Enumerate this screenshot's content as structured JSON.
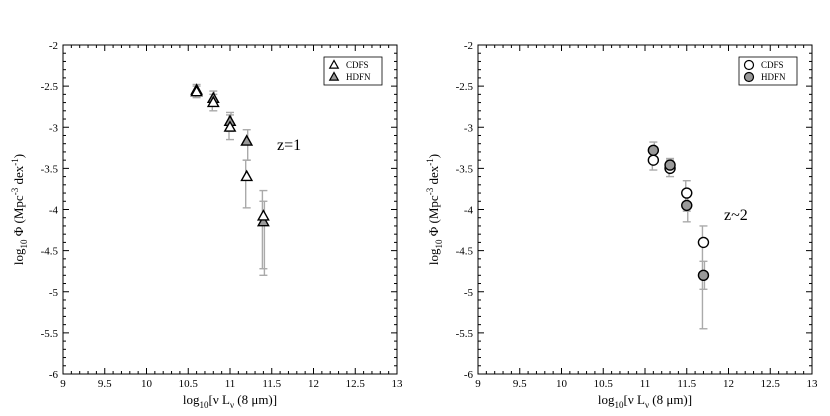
{
  "chart_data": [
    {
      "type": "scatter",
      "title": "",
      "xlabel_parts": [
        "log",
        "10",
        "[ν L",
        "ν",
        " (8 μm)]"
      ],
      "ylabel_parts": [
        "log",
        "10",
        " Φ  (Mpc",
        "-3",
        " dex",
        "-1",
        ")"
      ],
      "xlim": [
        9,
        13
      ],
      "ylim": [
        -6,
        -2
      ],
      "xticks": [
        "9",
        "9.5",
        "10",
        "10.5",
        "11",
        "11.5",
        "12",
        "12.5",
        "13"
      ],
      "yticks": [
        "-6",
        "-5.5",
        "-5",
        "-4.5",
        "-4",
        "-3.5",
        "-3",
        "-2.5",
        "-2"
      ],
      "annotation": "z=1",
      "legend": {
        "position": "top-right",
        "entries": [
          "CDFS",
          "HDFN"
        ]
      },
      "marker": "triangle",
      "series": [
        {
          "name": "CDFS",
          "fill": "#ffffff",
          "points": [
            {
              "x": 10.6,
              "y": -2.57,
              "lo": -2.64,
              "hi": -2.5
            },
            {
              "x": 10.8,
              "y": -2.7,
              "lo": -2.8,
              "hi": -2.6
            },
            {
              "x": 11.0,
              "y": -3.0,
              "lo": -3.15,
              "hi": -2.85
            },
            {
              "x": 11.2,
              "y": -3.6,
              "lo": -3.98,
              "hi": -3.4
            },
            {
              "x": 11.4,
              "y": -4.08,
              "lo": -4.72,
              "hi": -3.77
            }
          ]
        },
        {
          "name": "HDFN",
          "fill": "#999999",
          "points": [
            {
              "x": 10.6,
              "y": -2.55,
              "lo": -2.62,
              "hi": -2.48
            },
            {
              "x": 10.8,
              "y": -2.65,
              "lo": -2.74,
              "hi": -2.56
            },
            {
              "x": 11.0,
              "y": -2.93,
              "lo": -3.05,
              "hi": -2.82
            },
            {
              "x": 11.2,
              "y": -3.17,
              "lo": -3.4,
              "hi": -3.03
            },
            {
              "x": 11.4,
              "y": -4.15,
              "lo": -4.8,
              "hi": -3.9
            }
          ]
        }
      ]
    },
    {
      "type": "scatter",
      "title": "",
      "xlabel_parts": [
        "log",
        "10",
        "[ν L",
        "ν",
        " (8 μm)]"
      ],
      "ylabel_parts": [
        "log",
        "10",
        " Φ  (Mpc",
        "-3",
        " dex",
        "-1",
        ")"
      ],
      "xlim": [
        9,
        13
      ],
      "ylim": [
        -6,
        -2
      ],
      "xticks": [
        "9",
        "9.5",
        "10",
        "10.5",
        "11",
        "11.5",
        "12",
        "12.5",
        "13"
      ],
      "yticks": [
        "-6",
        "-5.5",
        "-5",
        "-4.5",
        "-4",
        "-3.5",
        "-3",
        "-2.5",
        "-2"
      ],
      "annotation": "z~2",
      "legend": {
        "position": "top-right",
        "entries": [
          "CDFS",
          "HDFN"
        ]
      },
      "marker": "circle",
      "series": [
        {
          "name": "CDFS",
          "fill": "#ffffff",
          "points": [
            {
              "x": 11.1,
              "y": -3.4,
              "lo": -3.52,
              "hi": -3.3
            },
            {
              "x": 11.3,
              "y": -3.5,
              "lo": -3.6,
              "hi": -3.4
            },
            {
              "x": 11.5,
              "y": -3.8,
              "lo": -4.02,
              "hi": -3.65
            },
            {
              "x": 11.7,
              "y": -4.4,
              "lo": -5.45,
              "hi": -4.2
            }
          ]
        },
        {
          "name": "HDFN",
          "fill": "#999999",
          "points": [
            {
              "x": 11.1,
              "y": -3.28,
              "lo": -3.38,
              "hi": -3.18
            },
            {
              "x": 11.3,
              "y": -3.46,
              "lo": -3.54,
              "hi": -3.38
            },
            {
              "x": 11.5,
              "y": -3.95,
              "lo": -4.15,
              "hi": -3.8
            },
            {
              "x": 11.7,
              "y": -4.8,
              "lo": -4.97,
              "hi": -4.63
            }
          ]
        }
      ]
    }
  ]
}
